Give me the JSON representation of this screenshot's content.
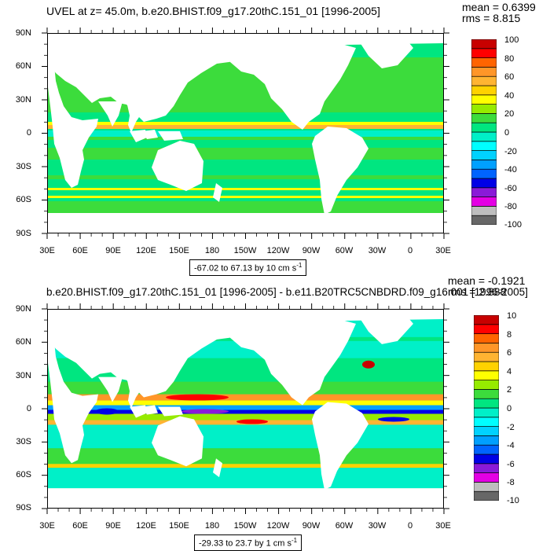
{
  "colors": [
    "#676767",
    "#bebebe",
    "#e400e4",
    "#8a1ad8",
    "#0000e6",
    "#0064ff",
    "#00a0ff",
    "#00d2ff",
    "#00ffff",
    "#00f0c8",
    "#00e680",
    "#3cdc3c",
    "#96eb00",
    "#ffff00",
    "#ffd200",
    "#ffb432",
    "#ff9628",
    "#ff6400",
    "#ff0000",
    "#c80000"
  ],
  "panel1": {
    "title": "UVEL at z=  45.0m, b.e20.BHIST.f09_g17.20thC.151_01 [1996-2005]",
    "mean": "mean = 0.6399",
    "rms": "rms = 8.815",
    "range_text": "-67.02 to 67.13 by 10 cm s",
    "range_sup": "-1",
    "lat_labels": [
      "90N",
      "60N",
      "30N",
      "0",
      "30S",
      "60S",
      "90S"
    ],
    "lon_labels": [
      "30E",
      "60E",
      "90E",
      "120E",
      "150E",
      "180",
      "150W",
      "120W",
      "90W",
      "60W",
      "30W",
      "0",
      "30E"
    ],
    "colorbar_labels": [
      "100",
      "80",
      "60",
      "40",
      "20",
      "0",
      "-20",
      "-40",
      "-60",
      "-80",
      "-100"
    ]
  },
  "panel2": {
    "title": "b.e20.BHIST.f09_g17.20thC.151_01 [1996-2005] - b.e11.B20TRC5CNBDRD.f09_g16.001 [1996-2005]",
    "mean": "mean = -0.1921",
    "rms": "rms = 2.888",
    "range_text": "-29.33 to 23.7 by 1 cm s",
    "range_sup": "-1",
    "lat_labels": [
      "90N",
      "60N",
      "30N",
      "0",
      "30S",
      "60S",
      "90S"
    ],
    "lon_labels": [
      "30E",
      "60E",
      "90E",
      "120E",
      "150E",
      "180",
      "150W",
      "120W",
      "90W",
      "60W",
      "30W",
      "0",
      "30E"
    ],
    "colorbar_labels": [
      "10",
      "8",
      "6",
      "4",
      "2",
      "0",
      "-2",
      "-4",
      "-6",
      "-8",
      "-10"
    ]
  }
}
